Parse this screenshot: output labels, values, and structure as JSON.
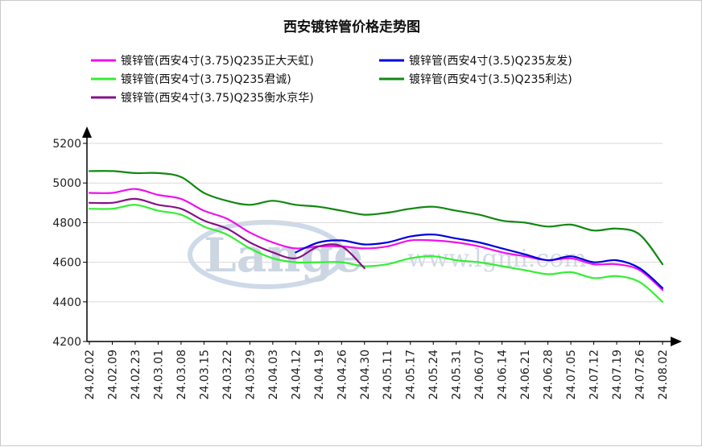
{
  "chart_data": {
    "type": "line",
    "title": "西安镀锌管价格走势图",
    "xlabel": "",
    "ylabel": "",
    "ylim": [
      4200,
      5200
    ],
    "yticks": [
      4200,
      4400,
      4600,
      4800,
      5000,
      5200
    ],
    "grid": "horizontal",
    "legend_position": "top",
    "x": [
      "24.02.02",
      "24.02.09",
      "24.02.23",
      "24.03.01",
      "24.03.08",
      "24.03.15",
      "24.03.22",
      "24.03.29",
      "24.04.03",
      "24.04.12",
      "24.04.19",
      "24.04.26",
      "24.04.30",
      "24.05.11",
      "24.05.17",
      "24.05.24",
      "24.05.31",
      "24.06.07",
      "24.06.14",
      "24.06.21",
      "24.06.28",
      "24.07.05",
      "24.07.12",
      "24.07.19",
      "24.07.26",
      "24.08.02"
    ],
    "series": [
      {
        "name": "镀锌管(西安4寸(3.75)Q235正大天虹)",
        "color": "#ee11ee",
        "values": [
          4950,
          4950,
          4970,
          4940,
          4920,
          4860,
          4820,
          4750,
          4700,
          4670,
          4680,
          4680,
          4670,
          4680,
          4710,
          4710,
          4700,
          4680,
          4650,
          4630,
          4610,
          4620,
          4590,
          4590,
          4560,
          4460
        ]
      },
      {
        "name": "镀锌管(西安4寸(3.5)Q235友发)",
        "color": "#0000dd",
        "values": [
          null,
          null,
          null,
          null,
          null,
          null,
          null,
          null,
          null,
          4650,
          4700,
          4710,
          4690,
          4700,
          4730,
          4740,
          4720,
          4700,
          4670,
          4640,
          4610,
          4630,
          4600,
          4610,
          4570,
          4470
        ]
      },
      {
        "name": "镀锌管(西安4寸(3.75)Q235君诚)",
        "color": "#33ee33",
        "values": [
          4870,
          4870,
          4890,
          4860,
          4840,
          4780,
          4740,
          4670,
          4620,
          4600,
          4600,
          4600,
          4580,
          4590,
          4620,
          4630,
          4610,
          4600,
          4580,
          4560,
          4540,
          4550,
          4520,
          4530,
          4500,
          4400
        ]
      },
      {
        "name": "镀锌管(西安4寸(3.5)Q235利达)",
        "color": "#118811",
        "values": [
          5060,
          5060,
          5050,
          5050,
          5030,
          4950,
          4910,
          4890,
          4910,
          4890,
          4880,
          4860,
          4840,
          4850,
          4870,
          4880,
          4860,
          4840,
          4810,
          4800,
          4780,
          4790,
          4760,
          4770,
          4740,
          4590
        ]
      },
      {
        "name": "镀锌管(西安4寸(3.75)Q235衡水京华)",
        "color": "#881188",
        "values": [
          4900,
          4900,
          4920,
          4890,
          4870,
          4810,
          4770,
          4700,
          4650,
          4620,
          4680,
          4680,
          4570,
          null,
          null,
          null,
          null,
          null,
          null,
          null,
          null,
          null,
          null,
          null,
          null,
          null
        ]
      }
    ]
  },
  "watermark": {
    "logo": "Lange",
    "site": "www.lgmi.com"
  }
}
